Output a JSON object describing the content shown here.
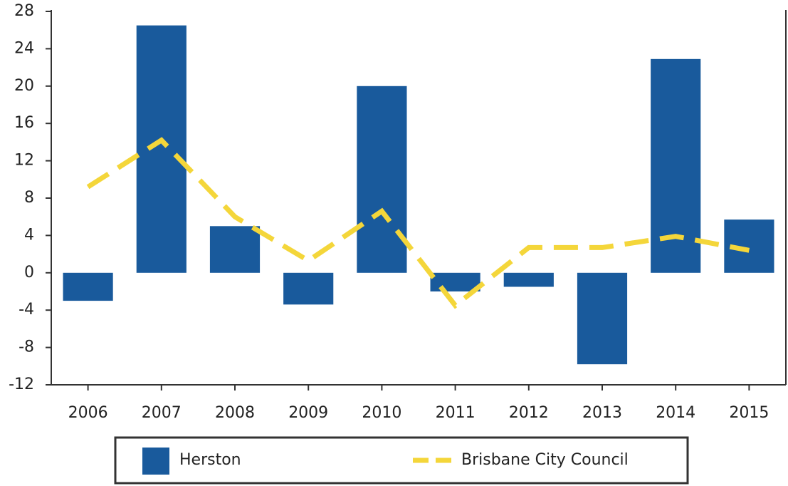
{
  "chart_data": {
    "type": "bar",
    "categories": [
      "2006",
      "2007",
      "2008",
      "2009",
      "2010",
      "2011",
      "2012",
      "2013",
      "2014",
      "2015"
    ],
    "series": [
      {
        "name": "Herston",
        "type": "bar",
        "color": "#195a9c",
        "values": [
          -3,
          26.5,
          5,
          -3.4,
          20,
          -2,
          -1.5,
          -9.8,
          22.9,
          5.7
        ]
      },
      {
        "name": "Brisbane City Council",
        "type": "line",
        "dashed": true,
        "color": "#f4d63a",
        "values": [
          9.2,
          14.2,
          6,
          1.3,
          6.6,
          -3.5,
          2.7,
          2.7,
          3.9,
          2.4
        ]
      }
    ],
    "ylim": [
      -12,
      28
    ],
    "yticks": [
      -12,
      -8,
      -4,
      0,
      4,
      8,
      12,
      16,
      20,
      24,
      28
    ],
    "grid": false,
    "legend": "bottom"
  }
}
